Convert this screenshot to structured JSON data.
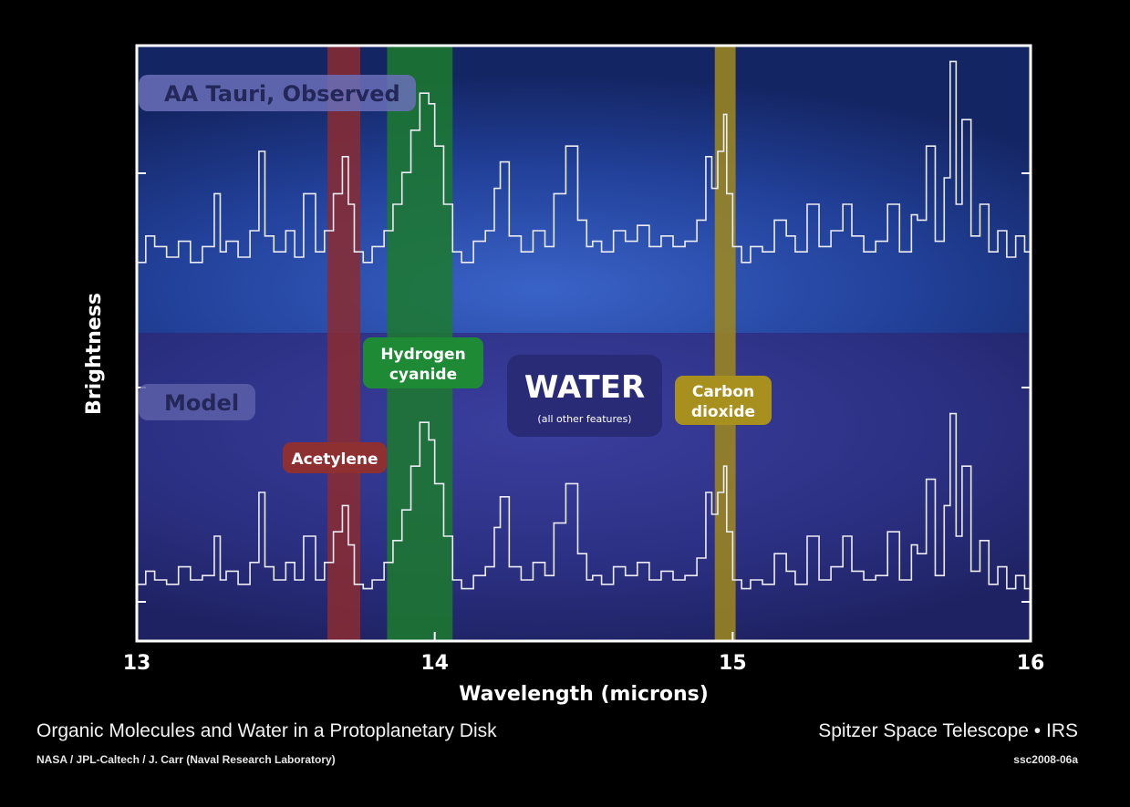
{
  "footer": {
    "title": "Organic Molecules and Water in a Protoplanetary Disk",
    "credit": "NASA / JPL-Caltech / J. Carr (Naval Research Laboratory)",
    "mission": "Spitzer Space Telescope • IRS",
    "image_id": "ssc2008-06a"
  },
  "chart_data": {
    "type": "line",
    "title": "Organic Molecules and Water in a Protoplanetary Disk",
    "xlabel": "Wavelength (microns)",
    "ylabel": "Brightness",
    "xlim": [
      13,
      16
    ],
    "x_ticks": [
      13,
      14,
      15,
      16
    ],
    "grid": false,
    "colors": {
      "observed_panel": "#23409a",
      "model_panel": "#2e3488",
      "acetylene": "#8b2b30",
      "hydrogen_cyanide": "#1c7a2e",
      "carbon_dioxide": "#a08a1c",
      "water_label": "#2b2d7a",
      "trace": "#e9e9f2"
    },
    "panel_labels": {
      "observed": "AA Tauri, Observed",
      "model": "Model"
    },
    "bands": [
      {
        "name": "Acetylene",
        "label": "Acetylene",
        "x0": 13.64,
        "x1": 13.75,
        "color": "#8b2b30"
      },
      {
        "name": "Hydrogen cyanide",
        "label_line1": "Hydrogen",
        "label_line2": "cyanide",
        "x0": 13.84,
        "x1": 14.06,
        "color": "#1c7a2e"
      },
      {
        "name": "Carbon dioxide",
        "label_line1": "Carbon",
        "label_line2": "dioxide",
        "x0": 14.94,
        "x1": 15.01,
        "color": "#a08a1c"
      }
    ],
    "water_annotation": {
      "label": "WATER",
      "sublabel": "(all other features)"
    },
    "series": [
      {
        "name": "AA Tauri, Observed",
        "panel": "top",
        "x": [
          13.0,
          13.03,
          13.06,
          13.1,
          13.14,
          13.18,
          13.22,
          13.26,
          13.28,
          13.3,
          13.34,
          13.38,
          13.41,
          13.43,
          13.46,
          13.5,
          13.53,
          13.56,
          13.6,
          13.63,
          13.66,
          13.69,
          13.71,
          13.73,
          13.76,
          13.79,
          13.83,
          13.86,
          13.89,
          13.92,
          13.95,
          13.98,
          14.0,
          14.03,
          14.06,
          14.09,
          14.13,
          14.17,
          14.2,
          14.22,
          14.25,
          14.29,
          14.33,
          14.37,
          14.4,
          14.44,
          14.48,
          14.51,
          14.53,
          14.56,
          14.6,
          14.64,
          14.68,
          14.72,
          14.76,
          14.8,
          14.84,
          14.88,
          14.91,
          14.93,
          14.95,
          14.97,
          14.98,
          15.0,
          15.03,
          15.06,
          15.1,
          15.14,
          15.18,
          15.21,
          15.25,
          15.29,
          15.33,
          15.37,
          15.4,
          15.44,
          15.48,
          15.52,
          15.56,
          15.6,
          15.62,
          15.65,
          15.68,
          15.71,
          15.73,
          15.75,
          15.77,
          15.8,
          15.83,
          15.86,
          15.89,
          15.92,
          15.95,
          15.98,
          16.0
        ],
        "y": [
          0.18,
          0.28,
          0.24,
          0.2,
          0.26,
          0.18,
          0.24,
          0.44,
          0.22,
          0.26,
          0.2,
          0.3,
          0.6,
          0.28,
          0.22,
          0.3,
          0.2,
          0.44,
          0.22,
          0.3,
          0.44,
          0.58,
          0.4,
          0.22,
          0.18,
          0.24,
          0.3,
          0.4,
          0.52,
          0.68,
          0.82,
          0.78,
          0.62,
          0.4,
          0.22,
          0.18,
          0.26,
          0.3,
          0.46,
          0.56,
          0.28,
          0.22,
          0.3,
          0.24,
          0.44,
          0.62,
          0.34,
          0.24,
          0.26,
          0.22,
          0.3,
          0.26,
          0.32,
          0.24,
          0.28,
          0.24,
          0.26,
          0.34,
          0.58,
          0.46,
          0.6,
          0.74,
          0.44,
          0.24,
          0.18,
          0.24,
          0.22,
          0.34,
          0.28,
          0.22,
          0.4,
          0.24,
          0.3,
          0.4,
          0.28,
          0.22,
          0.26,
          0.4,
          0.22,
          0.36,
          0.34,
          0.62,
          0.26,
          0.5,
          0.94,
          0.4,
          0.72,
          0.28,
          0.4,
          0.22,
          0.3,
          0.2,
          0.28,
          0.22,
          0.4
        ]
      },
      {
        "name": "Model",
        "panel": "bottom",
        "x": [
          13.0,
          13.03,
          13.06,
          13.1,
          13.14,
          13.18,
          13.22,
          13.26,
          13.28,
          13.3,
          13.34,
          13.38,
          13.41,
          13.43,
          13.46,
          13.5,
          13.53,
          13.56,
          13.6,
          13.63,
          13.66,
          13.69,
          13.71,
          13.73,
          13.76,
          13.79,
          13.83,
          13.86,
          13.89,
          13.92,
          13.95,
          13.98,
          14.0,
          14.03,
          14.06,
          14.09,
          14.13,
          14.17,
          14.2,
          14.22,
          14.25,
          14.29,
          14.33,
          14.37,
          14.4,
          14.44,
          14.48,
          14.51,
          14.53,
          14.56,
          14.6,
          14.64,
          14.68,
          14.72,
          14.76,
          14.8,
          14.84,
          14.88,
          14.91,
          14.93,
          14.95,
          14.97,
          14.98,
          15.0,
          15.03,
          15.06,
          15.1,
          15.14,
          15.18,
          15.21,
          15.25,
          15.29,
          15.33,
          15.37,
          15.4,
          15.44,
          15.48,
          15.52,
          15.56,
          15.6,
          15.62,
          15.65,
          15.68,
          15.71,
          15.73,
          15.75,
          15.77,
          15.8,
          15.83,
          15.86,
          15.89,
          15.92,
          15.95,
          15.98,
          16.0
        ],
        "y": [
          0.08,
          0.14,
          0.1,
          0.08,
          0.16,
          0.1,
          0.12,
          0.3,
          0.1,
          0.14,
          0.08,
          0.18,
          0.5,
          0.16,
          0.1,
          0.18,
          0.1,
          0.3,
          0.1,
          0.18,
          0.32,
          0.44,
          0.26,
          0.08,
          0.06,
          0.1,
          0.18,
          0.28,
          0.42,
          0.62,
          0.82,
          0.74,
          0.54,
          0.3,
          0.1,
          0.06,
          0.12,
          0.16,
          0.34,
          0.48,
          0.16,
          0.1,
          0.18,
          0.12,
          0.36,
          0.54,
          0.22,
          0.1,
          0.12,
          0.08,
          0.16,
          0.12,
          0.18,
          0.1,
          0.14,
          0.1,
          0.12,
          0.2,
          0.5,
          0.4,
          0.5,
          0.62,
          0.32,
          0.1,
          0.06,
          0.1,
          0.08,
          0.22,
          0.14,
          0.08,
          0.3,
          0.1,
          0.16,
          0.3,
          0.14,
          0.1,
          0.12,
          0.32,
          0.1,
          0.26,
          0.22,
          0.56,
          0.12,
          0.44,
          0.86,
          0.3,
          0.62,
          0.14,
          0.28,
          0.08,
          0.16,
          0.06,
          0.12,
          0.06,
          0.3
        ]
      }
    ]
  }
}
